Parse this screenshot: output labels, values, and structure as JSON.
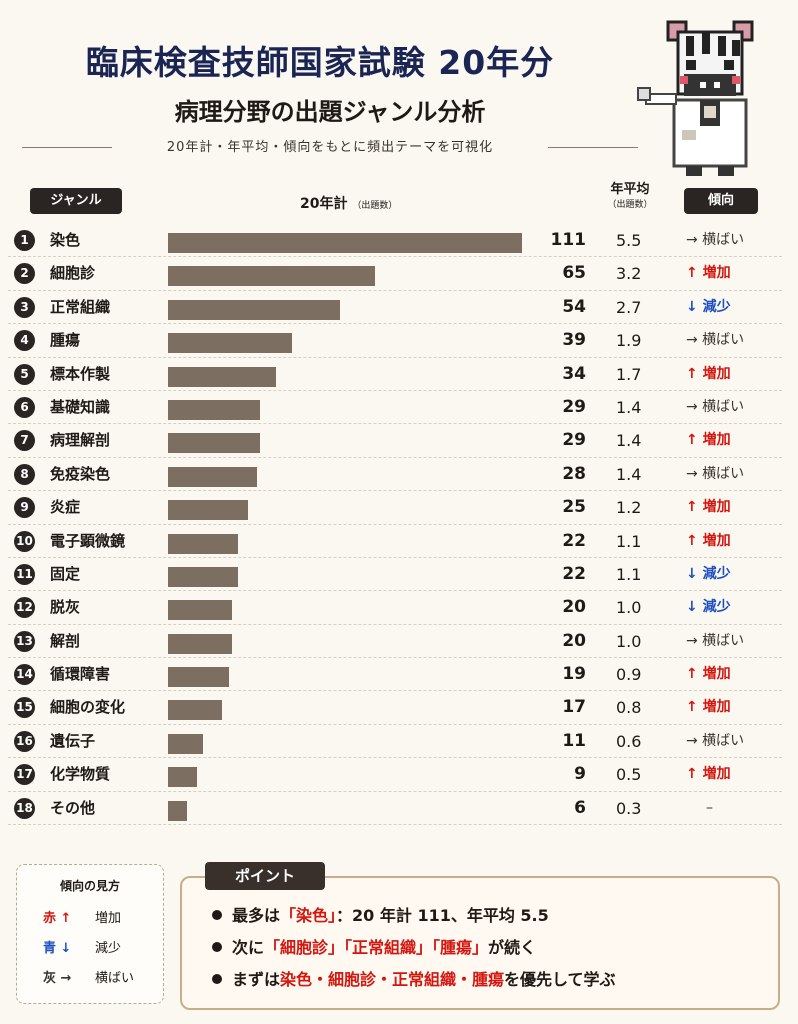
{
  "header": {
    "title": "臨床検査技師国家試験 20年分",
    "subtitle": "病理分野の出題ジャンル分析",
    "tagline": "20年計・年平均・傾向をもとに頻出テーマを可視化"
  },
  "columns": {
    "genre": "ジャンル",
    "total": "20年計",
    "total_unit": "（出題数）",
    "avg": "年平均",
    "avg_unit": "（出題数）",
    "trend": "傾向"
  },
  "colors": {
    "up": "#d4160f",
    "down": "#1d4fbe",
    "bar": "#7d6e62",
    "title": "#1b2554"
  },
  "chart_data": {
    "type": "bar",
    "orientation": "horizontal",
    "title": "",
    "xlabel": "20年計（出題数）",
    "xlim": [
      0,
      111
    ],
    "categories": [
      "染色",
      "細胞診",
      "正常組織",
      "腫瘍",
      "標本作製",
      "基礎知識",
      "病理解剖",
      "免疫染色",
      "炎症",
      "電子顕微鏡",
      "固定",
      "脱灰",
      "解剖",
      "循環障害",
      "細胞の変化",
      "遺伝子",
      "化学物質",
      "その他"
    ],
    "values": [
      111,
      65,
      54,
      39,
      34,
      29,
      29,
      28,
      25,
      22,
      22,
      20,
      20,
      19,
      17,
      11,
      9,
      6
    ],
    "rows": [
      {
        "rank": "1",
        "genre": "染色",
        "total": "111",
        "avg": "5.5",
        "trend": "→ 横ばい",
        "trend_type": "flat"
      },
      {
        "rank": "2",
        "genre": "細胞診",
        "total": "65",
        "avg": "3.2",
        "trend": "↑ 増加",
        "trend_type": "up"
      },
      {
        "rank": "3",
        "genre": "正常組織",
        "total": "54",
        "avg": "2.7",
        "trend": "↓ 減少",
        "trend_type": "down"
      },
      {
        "rank": "4",
        "genre": "腫瘍",
        "total": "39",
        "avg": "1.9",
        "trend": "→ 横ばい",
        "trend_type": "flat"
      },
      {
        "rank": "5",
        "genre": "標本作製",
        "total": "34",
        "avg": "1.7",
        "trend": "↑ 増加",
        "trend_type": "up"
      },
      {
        "rank": "6",
        "genre": "基礎知識",
        "total": "29",
        "avg": "1.4",
        "trend": "→ 横ばい",
        "trend_type": "flat"
      },
      {
        "rank": "7",
        "genre": "病理解剖",
        "total": "29",
        "avg": "1.4",
        "trend": "↑ 増加",
        "trend_type": "up"
      },
      {
        "rank": "8",
        "genre": "免疫染色",
        "total": "28",
        "avg": "1.4",
        "trend": "→ 横ばい",
        "trend_type": "flat"
      },
      {
        "rank": "9",
        "genre": "炎症",
        "total": "25",
        "avg": "1.2",
        "trend": "↑ 増加",
        "trend_type": "up"
      },
      {
        "rank": "10",
        "genre": "電子顕微鏡",
        "total": "22",
        "avg": "1.1",
        "trend": "↑ 増加",
        "trend_type": "up"
      },
      {
        "rank": "11",
        "genre": "固定",
        "total": "22",
        "avg": "1.1",
        "trend": "↓ 減少",
        "trend_type": "down"
      },
      {
        "rank": "12",
        "genre": "脱灰",
        "total": "20",
        "avg": "1.0",
        "trend": "↓ 減少",
        "trend_type": "down"
      },
      {
        "rank": "13",
        "genre": "解剖",
        "total": "20",
        "avg": "1.0",
        "trend": "→ 横ばい",
        "trend_type": "flat"
      },
      {
        "rank": "14",
        "genre": "循環障害",
        "total": "19",
        "avg": "0.9",
        "trend": "↑ 増加",
        "trend_type": "up"
      },
      {
        "rank": "15",
        "genre": "細胞の変化",
        "total": "17",
        "avg": "0.8",
        "trend": "↑ 増加",
        "trend_type": "up"
      },
      {
        "rank": "16",
        "genre": "遺伝子",
        "total": "11",
        "avg": "0.6",
        "trend": "→ 横ばい",
        "trend_type": "flat"
      },
      {
        "rank": "17",
        "genre": "化学物質",
        "total": "9",
        "avg": "0.5",
        "trend": "↑ 増加",
        "trend_type": "up"
      },
      {
        "rank": "18",
        "genre": "その他",
        "total": "6",
        "avg": "0.3",
        "trend": "–",
        "trend_type": "flat"
      }
    ]
  },
  "legend": {
    "title": "傾向の見方",
    "items": [
      {
        "symbol": "赤 ↑",
        "label": "増加",
        "type": "up"
      },
      {
        "symbol": "青 ↓",
        "label": "減少",
        "type": "down"
      },
      {
        "symbol": "灰 →",
        "label": "横ばい",
        "type": "flat"
      }
    ]
  },
  "points": {
    "tag": "ポイント",
    "lines": [
      [
        {
          "t": "最多は"
        },
        {
          "t": "「染色」",
          "red": true
        },
        {
          "t": "：20 年計 111、年平均 5.5"
        }
      ],
      [
        {
          "t": "次に"
        },
        {
          "t": "「細胞診」「正常組織」「腫瘍」",
          "red": true
        },
        {
          "t": "が続く"
        }
      ],
      [
        {
          "t": "まずは"
        },
        {
          "t": "染色・細胞診・正常組織・腫瘍",
          "red": true
        },
        {
          "t": "を優先して学ぶ"
        }
      ]
    ]
  }
}
